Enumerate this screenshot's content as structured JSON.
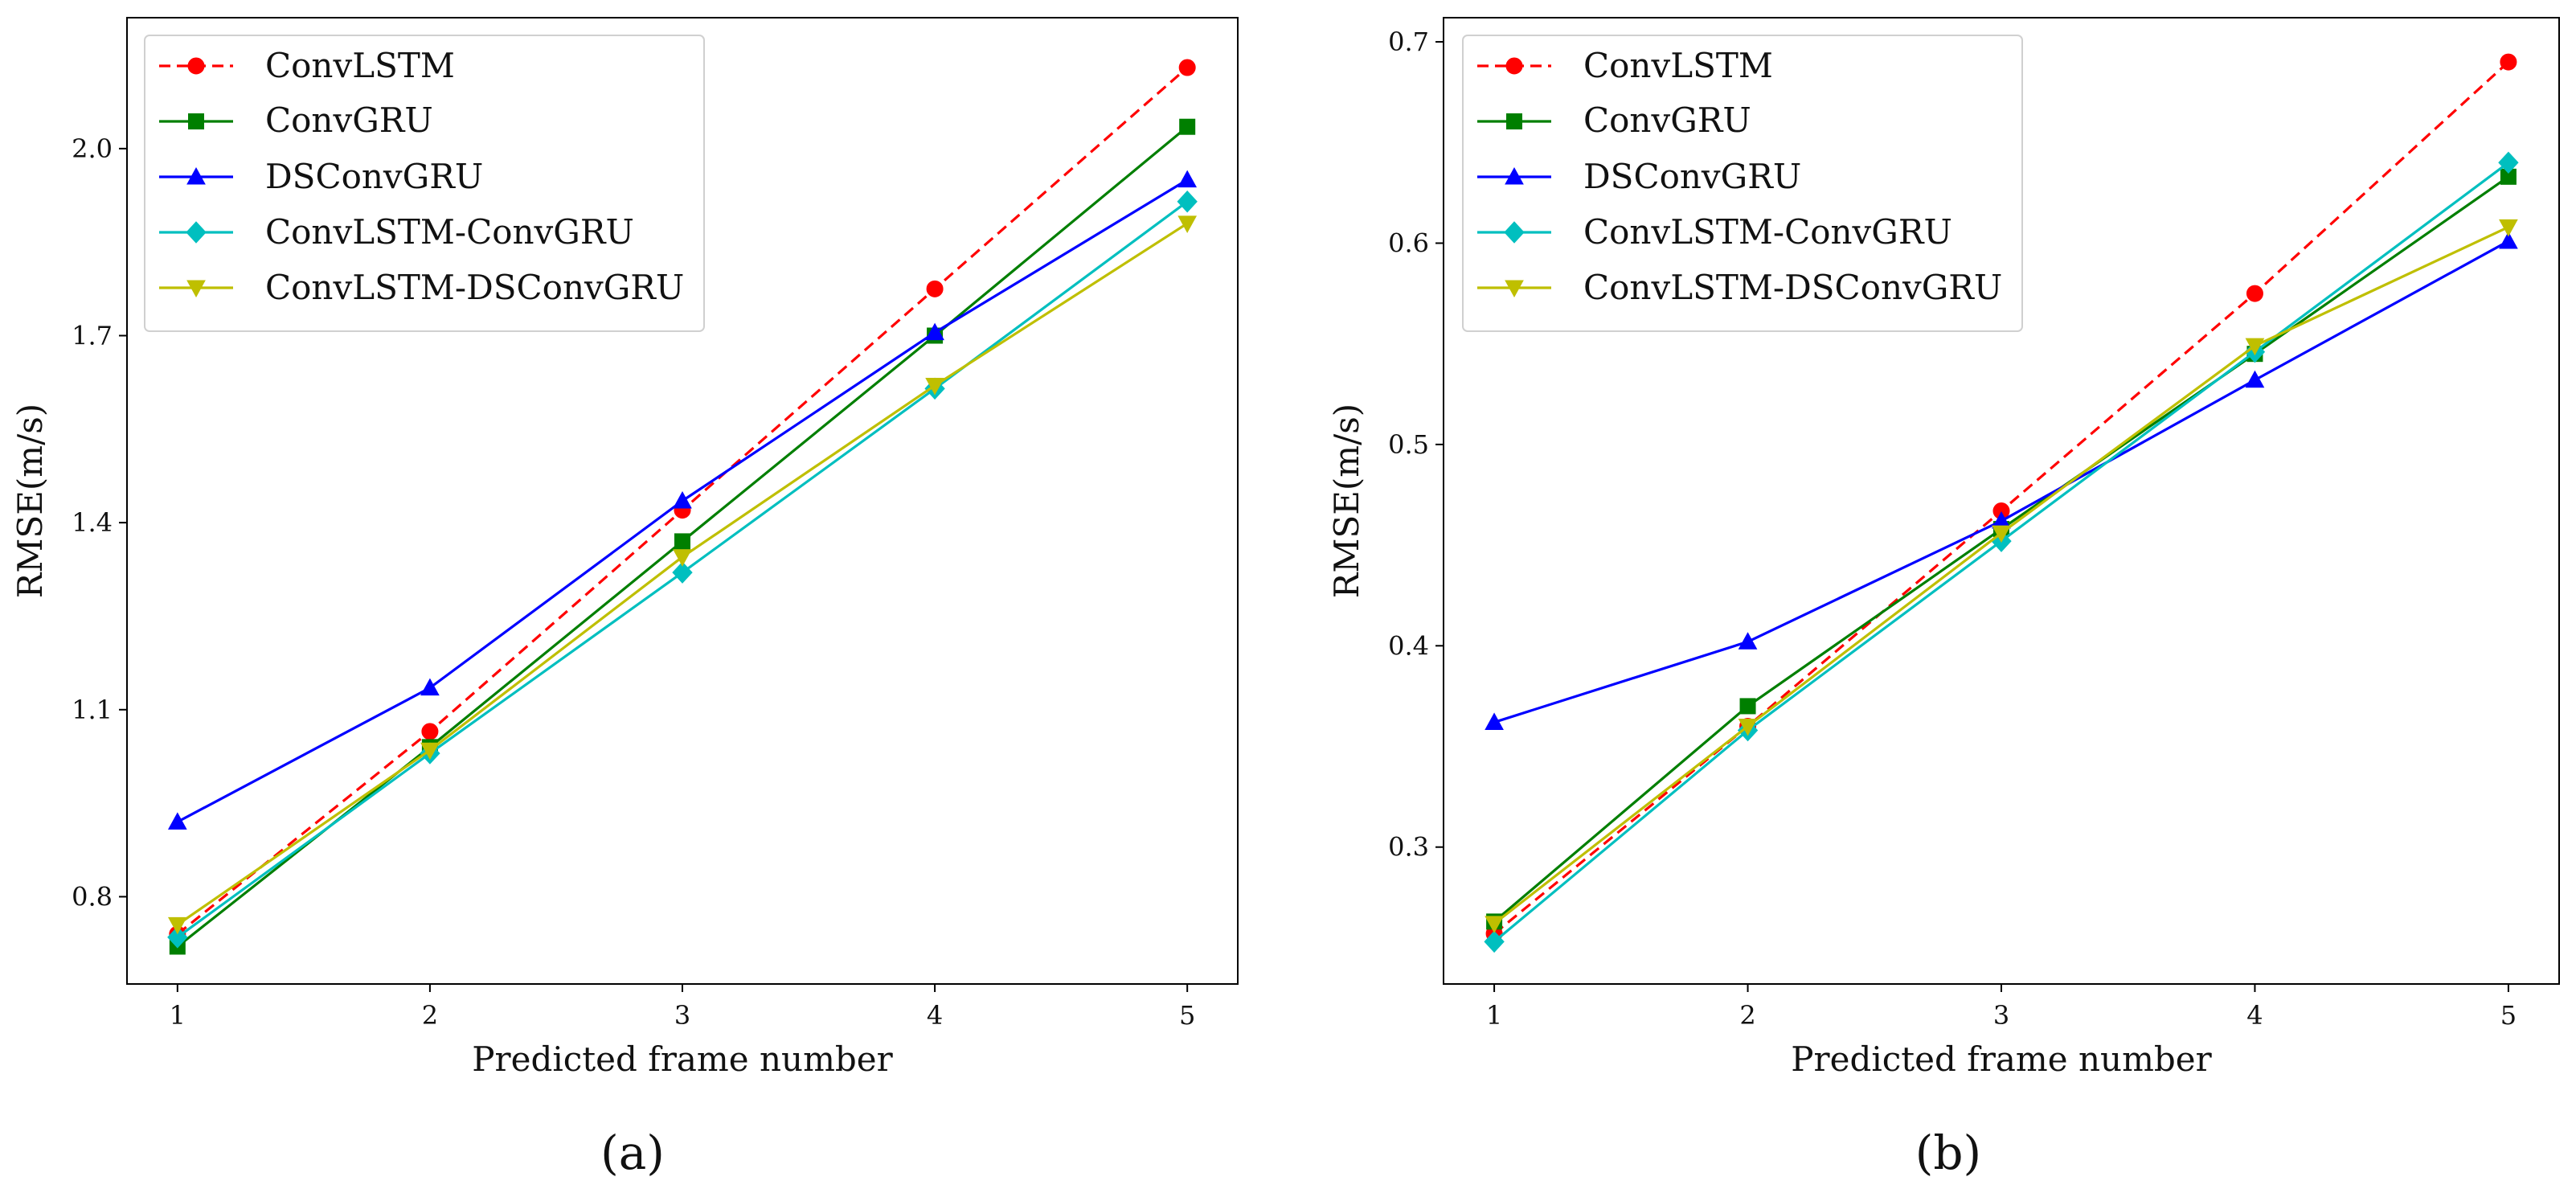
{
  "chart_data": [
    {
      "type": "line",
      "panel_label": "(a)",
      "title": "",
      "xlabel": "Predicted frame number",
      "ylabel": "RMSE(m/s)",
      "x": [
        1,
        2,
        3,
        4,
        5
      ],
      "xticks": [
        "1",
        "2",
        "3",
        "4",
        "5"
      ],
      "xlim": [
        0.8,
        5.2
      ],
      "ylim": [
        0.66,
        2.21
      ],
      "yticks": [
        0.8,
        1.1,
        1.4,
        1.7,
        2.0
      ],
      "ytick_labels": [
        "0.8",
        "1.1",
        "1.4",
        "1.7",
        "2.0"
      ],
      "grid": false,
      "legend_position": "upper-left",
      "series": [
        {
          "name": "ConvLSTM",
          "color": "#ff0000",
          "linestyle": "dashed",
          "marker": "circle",
          "values": [
            0.74,
            1.065,
            1.42,
            1.775,
            2.13
          ]
        },
        {
          "name": "ConvGRU",
          "color": "#007f00",
          "linestyle": "solid",
          "marker": "square",
          "values": [
            0.72,
            1.04,
            1.37,
            1.7,
            2.035
          ]
        },
        {
          "name": "DSConvGRU",
          "color": "#0000ff",
          "linestyle": "solid",
          "marker": "triangle-up",
          "values": [
            0.92,
            1.135,
            1.435,
            1.705,
            1.95
          ]
        },
        {
          "name": "ConvLSTM-ConvGRU",
          "color": "#00bfbf",
          "linestyle": "solid",
          "marker": "diamond",
          "values": [
            0.735,
            1.03,
            1.32,
            1.615,
            1.915
          ]
        },
        {
          "name": "ConvLSTM-DSConvGRU",
          "color": "#bfbf00",
          "linestyle": "solid",
          "marker": "triangle-down",
          "values": [
            0.755,
            1.035,
            1.345,
            1.62,
            1.88
          ]
        }
      ]
    },
    {
      "type": "line",
      "panel_label": "(b)",
      "title": "",
      "xlabel": "Predicted frame number",
      "ylabel": "RMSE(m/s)",
      "x": [
        1,
        2,
        3,
        4,
        5
      ],
      "xticks": [
        "1",
        "2",
        "3",
        "4",
        "5"
      ],
      "xlim": [
        0.8,
        5.2
      ],
      "ylim": [
        0.232,
        0.712
      ],
      "yticks": [
        0.3,
        0.4,
        0.5,
        0.6,
        0.7
      ],
      "ytick_labels": [
        "0.3",
        "0.4",
        "0.5",
        "0.6",
        "0.7"
      ],
      "grid": false,
      "legend_position": "upper-left",
      "series": [
        {
          "name": "ConvLSTM",
          "color": "#ff0000",
          "linestyle": "dashed",
          "marker": "circle",
          "values": [
            0.257,
            0.36,
            0.467,
            0.575,
            0.69
          ]
        },
        {
          "name": "ConvGRU",
          "color": "#007f00",
          "linestyle": "solid",
          "marker": "square",
          "values": [
            0.263,
            0.37,
            0.458,
            0.545,
            0.633
          ]
        },
        {
          "name": "DSConvGRU",
          "color": "#0000ff",
          "linestyle": "solid",
          "marker": "triangle-up",
          "values": [
            0.362,
            0.402,
            0.462,
            0.532,
            0.601
          ]
        },
        {
          "name": "ConvLSTM-ConvGRU",
          "color": "#00bfbf",
          "linestyle": "solid",
          "marker": "diamond",
          "values": [
            0.253,
            0.358,
            0.452,
            0.546,
            0.64
          ]
        },
        {
          "name": "ConvLSTM-DSConvGRU",
          "color": "#bfbf00",
          "linestyle": "solid",
          "marker": "triangle-down",
          "values": [
            0.262,
            0.36,
            0.456,
            0.549,
            0.608
          ]
        }
      ]
    }
  ]
}
